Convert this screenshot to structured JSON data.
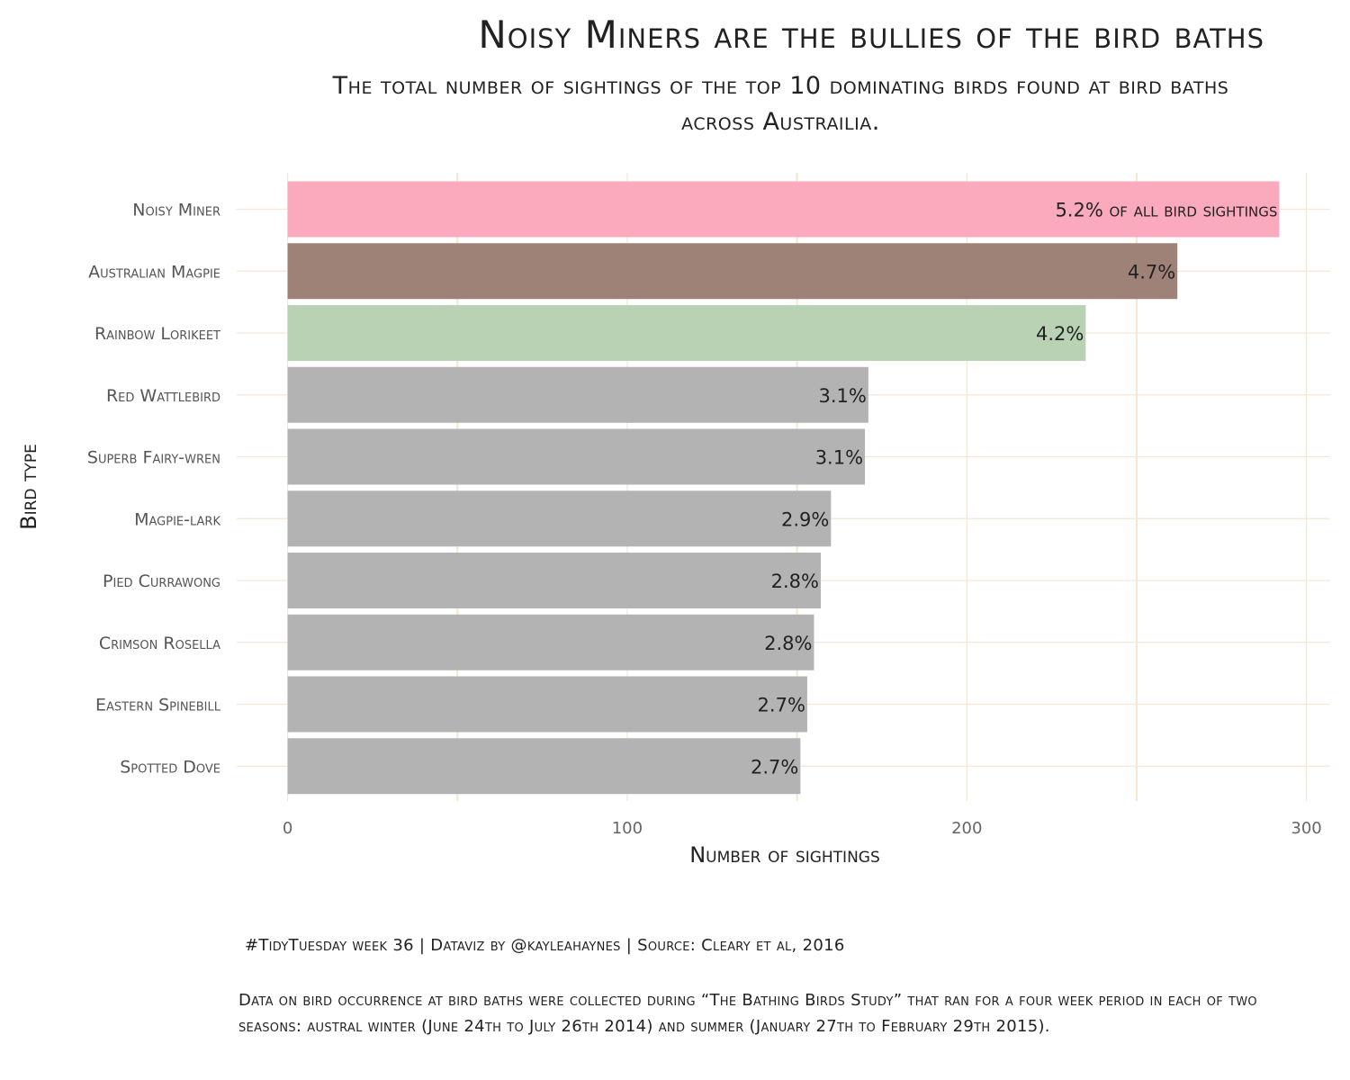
{
  "title": "Noisy Miners are the bullies of the bird baths",
  "subtitle": "The total number of sightings of the top 10 dominating birds found at bird baths across Austrailia.",
  "caption": "#TidyTuesday week 36 | Dataviz by @kayleahaynes | Source: Cleary et al, 2016",
  "note": " Data on bird occurrence at bird baths were collected during “The Bathing Birds Study” that ran for a four week period in each of two seasons: austral winter (June 24th to July 26th 2014) and summer (January 27th to February 29th 2015).",
  "chart_data": {
    "type": "bar",
    "orientation": "horizontal",
    "xlabel": "Number of sightings",
    "ylabel": "Bird type",
    "xlim": [
      -15,
      307
    ],
    "xticks": [
      0,
      100,
      200,
      300
    ],
    "grid": true,
    "legend": "none",
    "categories": [
      "Noisy Miner",
      "Australian Magpie",
      "Rainbow Lorikeet",
      "Red Wattlebird",
      "Superb Fairy-wren",
      "Magpie-lark",
      "Pied Currawong",
      "Crimson Rosella",
      "Eastern Spinebill",
      "Spotted Dove"
    ],
    "values": [
      292,
      262,
      235,
      171,
      170,
      160,
      157,
      155,
      153,
      151
    ],
    "labels": [
      "5.2% of all bird sightings",
      "4.7%",
      "4.2%",
      "3.1%",
      "3.1%",
      "2.9%",
      "2.8%",
      "2.8%",
      "2.7%",
      "2.7%"
    ],
    "colors": [
      "#fbaabe",
      "#9f8277",
      "#b9d2b4",
      "#b3b3b3",
      "#b3b3b3",
      "#b3b3b3",
      "#b3b3b3",
      "#b3b3b3",
      "#b3b3b3",
      "#b3b3b3"
    ],
    "grid_color": "#f6e6d2"
  }
}
